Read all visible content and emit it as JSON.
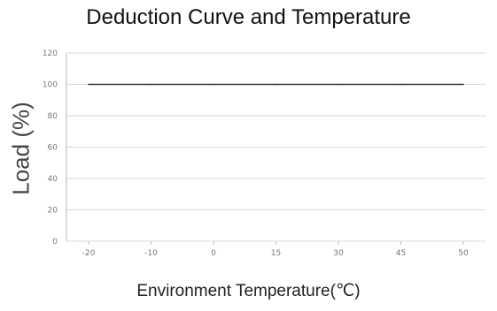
{
  "chart_data": {
    "type": "line",
    "title": "Deduction Curve and Temperature",
    "xlabel": "Environment Temperature(℃)",
    "ylabel": "Load (%)",
    "categories": [
      "-20",
      "-10",
      "0",
      "15",
      "30",
      "45",
      "50"
    ],
    "series": [
      {
        "values": [
          100,
          100,
          100,
          100,
          100,
          100,
          100
        ],
        "color": "#333333"
      }
    ],
    "yticks": [
      0,
      20,
      40,
      60,
      80,
      100,
      120
    ],
    "ylim": [
      0,
      120
    ],
    "grid": true,
    "legend": "none"
  }
}
